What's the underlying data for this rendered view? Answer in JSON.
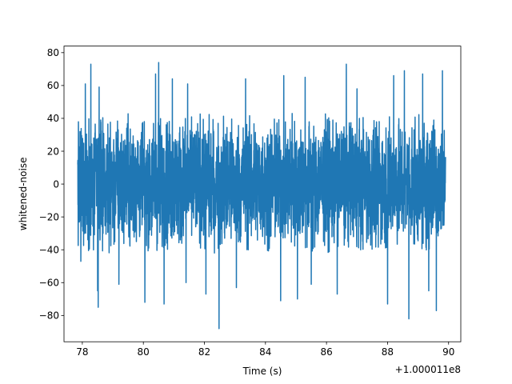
{
  "chart_data": {
    "type": "line",
    "title": "",
    "xlabel": "Time (s)",
    "ylabel": "whitened-noise",
    "x_offset_label": "+1.000011e8",
    "xlim": [
      77.4,
      90.4
    ],
    "ylim": [
      -96,
      84
    ],
    "xticks": [
      78,
      80,
      82,
      84,
      86,
      88,
      90
    ],
    "yticks": [
      -80,
      -60,
      -40,
      -20,
      0,
      20,
      40,
      60,
      80
    ],
    "xtick_labels": [
      "78",
      "80",
      "82",
      "84",
      "86",
      "88",
      "90"
    ],
    "ytick_labels": [
      "−80",
      "−60",
      "−40",
      "−20",
      "0",
      "20",
      "40",
      "60",
      "80"
    ],
    "grid": false,
    "series": [
      {
        "color": "#1f77b4",
        "x_range": [
          77.85,
          89.9
        ],
        "samples": 3200,
        "envelope_hi": 43,
        "envelope_lo": -42,
        "peaks": [
          {
            "x": 77.95,
            "y": 52
          },
          {
            "x": 78.1,
            "y": 61
          },
          {
            "x": 78.28,
            "y": 73
          },
          {
            "x": 78.55,
            "y": 59
          },
          {
            "x": 80.05,
            "y": 72
          },
          {
            "x": 80.4,
            "y": 67
          },
          {
            "x": 80.5,
            "y": 74
          },
          {
            "x": 80.95,
            "y": 64
          },
          {
            "x": 81.45,
            "y": 61
          },
          {
            "x": 83.35,
            "y": 64
          },
          {
            "x": 84.6,
            "y": 66
          },
          {
            "x": 85.3,
            "y": 65
          },
          {
            "x": 86.65,
            "y": 73
          },
          {
            "x": 87.0,
            "y": 58
          },
          {
            "x": 88.2,
            "y": 66
          },
          {
            "x": 88.55,
            "y": 69
          },
          {
            "x": 89.15,
            "y": 67
          },
          {
            "x": 89.8,
            "y": 69
          }
        ],
        "troughs": [
          {
            "x": 77.95,
            "y": -47
          },
          {
            "x": 78.5,
            "y": -65
          },
          {
            "x": 78.52,
            "y": -75
          },
          {
            "x": 79.2,
            "y": -61
          },
          {
            "x": 80.05,
            "y": -72
          },
          {
            "x": 80.68,
            "y": -73
          },
          {
            "x": 81.4,
            "y": -60
          },
          {
            "x": 82.05,
            "y": -67
          },
          {
            "x": 82.48,
            "y": -88
          },
          {
            "x": 83.05,
            "y": -63
          },
          {
            "x": 84.5,
            "y": -71
          },
          {
            "x": 85.05,
            "y": -70
          },
          {
            "x": 85.5,
            "y": -61
          },
          {
            "x": 86.35,
            "y": -67
          },
          {
            "x": 88.0,
            "y": -73
          },
          {
            "x": 88.7,
            "y": -82
          },
          {
            "x": 89.35,
            "y": -65
          },
          {
            "x": 89.6,
            "y": -77
          }
        ]
      }
    ]
  }
}
